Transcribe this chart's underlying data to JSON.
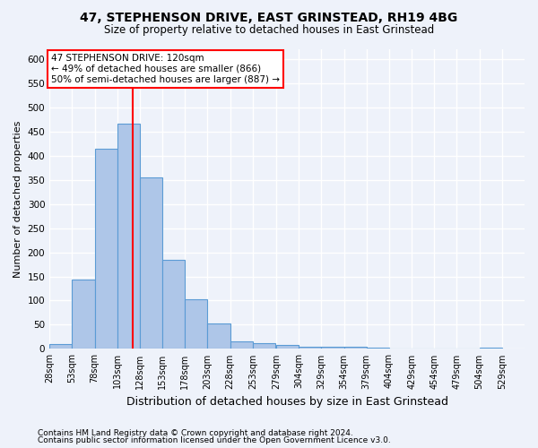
{
  "title1": "47, STEPHENSON DRIVE, EAST GRINSTEAD, RH19 4BG",
  "title2": "Size of property relative to detached houses in East Grinstead",
  "xlabel": "Distribution of detached houses by size in East Grinstead",
  "ylabel": "Number of detached properties",
  "footnote1": "Contains HM Land Registry data © Crown copyright and database right 2024.",
  "footnote2": "Contains public sector information licensed under the Open Government Licence v3.0.",
  "bar_left_edges": [
    28,
    53,
    78,
    103,
    128,
    153,
    178,
    203,
    228,
    253,
    279,
    304,
    329,
    354,
    379,
    404,
    429,
    454,
    479,
    504,
    529
  ],
  "bar_heights": [
    10,
    143,
    415,
    467,
    355,
    185,
    102,
    53,
    16,
    12,
    9,
    5,
    4,
    4,
    3,
    0,
    0,
    0,
    0,
    3
  ],
  "bar_color": "#aec6e8",
  "bar_edge_color": "#5b9bd5",
  "vline_x": 120,
  "vline_color": "red",
  "annotation_text": "47 STEPHENSON DRIVE: 120sqm\n← 49% of detached houses are smaller (866)\n50% of semi-detached houses are larger (887) →",
  "annotation_box_color": "white",
  "annotation_box_edge_color": "red",
  "ylim": [
    0,
    620
  ],
  "yticks": [
    0,
    50,
    100,
    150,
    200,
    250,
    300,
    350,
    400,
    450,
    500,
    550,
    600
  ],
  "background_color": "#eef2fa",
  "grid_color": "white",
  "title1_fontsize": 10,
  "title2_fontsize": 8.5,
  "ylabel_fontsize": 8,
  "xlabel_fontsize": 9,
  "footnote_fontsize": 6.5,
  "tick_fontsize": 7
}
